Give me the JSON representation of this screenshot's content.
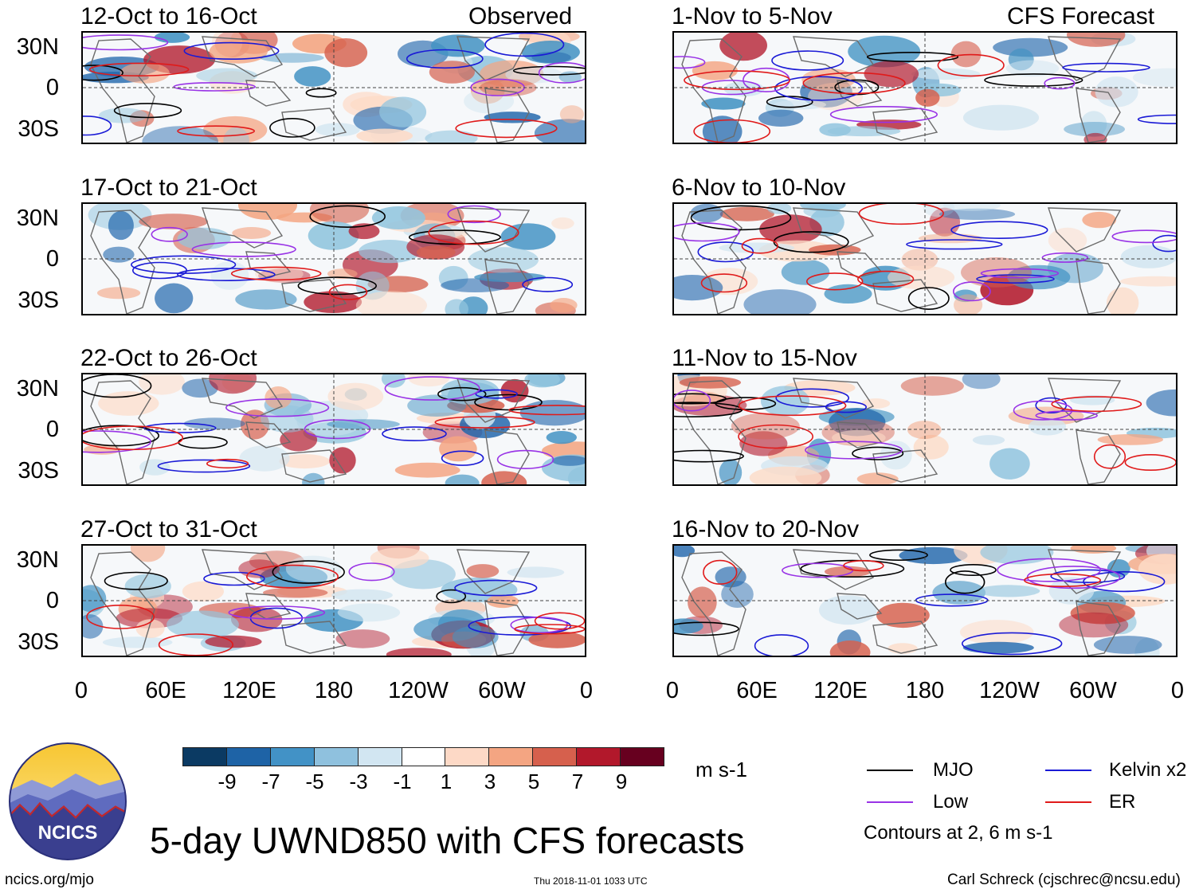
{
  "figure": {
    "title": "5-day UWND850 with CFS forecasts",
    "site": "ncics.org/mjo",
    "timestamp": "Thu 2018-11-01 1033 UTC",
    "author": "Carl Schreck (cjschrec@ncsu.edu)",
    "logo_text": "NCICS"
  },
  "headers": {
    "observed": "Observed",
    "forecast": "CFS Forecast"
  },
  "panels": [
    {
      "title": "12-Oct to 16-Oct",
      "kind": "observed",
      "seed": 11
    },
    {
      "title": "17-Oct to 21-Oct",
      "kind": "observed",
      "seed": 23
    },
    {
      "title": "22-Oct to 26-Oct",
      "kind": "observed",
      "seed": 37
    },
    {
      "title": "27-Oct to 31-Oct",
      "kind": "observed",
      "seed": 41
    },
    {
      "title": "1-Nov to 5-Nov",
      "kind": "forecast",
      "seed": 53
    },
    {
      "title": "6-Nov to 10-Nov",
      "kind": "forecast",
      "seed": 67
    },
    {
      "title": "11-Nov to 15-Nov",
      "kind": "forecast",
      "seed": 71
    },
    {
      "title": "16-Nov to 20-Nov",
      "kind": "forecast",
      "seed": 89
    }
  ],
  "axes": {
    "lat_labels": [
      "30N",
      "0",
      "30S"
    ],
    "lon_labels": [
      "0",
      "60E",
      "120E",
      "180",
      "120W",
      "60W",
      "0"
    ]
  },
  "colorbar": {
    "unit": "m s-1",
    "ticks": [
      "-9",
      "-7",
      "-5",
      "-3",
      "-1",
      "1",
      "3",
      "5",
      "7",
      "9"
    ],
    "colors": [
      "#0b3a63",
      "#1e63a6",
      "#4292c6",
      "#8fc1de",
      "#d2e6f2",
      "#ffffff",
      "#fdd9c6",
      "#f4a582",
      "#d6604d",
      "#b2182b",
      "#67001f"
    ]
  },
  "legend": {
    "items": [
      {
        "label": "MJO",
        "color": "#000000"
      },
      {
        "label": "Kelvin x2",
        "color": "#1a1ad6"
      },
      {
        "label": "Low",
        "color": "#9933e6"
      },
      {
        "label": "ER",
        "color": "#e01a1a"
      }
    ],
    "note": "Contours at 2, 6 m s-1"
  }
}
